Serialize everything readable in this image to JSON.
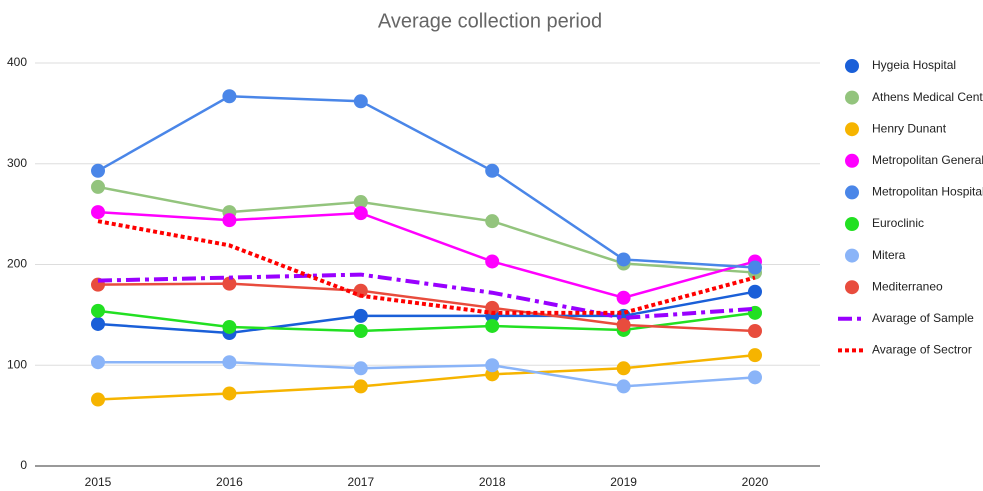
{
  "chart_data": {
    "type": "line",
    "title": "Average collection period",
    "categories": [
      "2015",
      "2016",
      "2017",
      "2018",
      "2019",
      "2020"
    ],
    "series": [
      {
        "name": "Hygeia Hospital",
        "color": "#1a5fd8",
        "values": [
          141,
          132,
          149,
          149,
          149,
          173
        ]
      },
      {
        "name": "Athens Medical Center",
        "color": "#93c47d",
        "values": [
          277,
          252,
          262,
          243,
          201,
          192
        ]
      },
      {
        "name": "Henry Dunant",
        "color": "#f6b400",
        "values": [
          66,
          72,
          79,
          91,
          97,
          110
        ]
      },
      {
        "name": "Metropolitan General",
        "color": "#ff00ff",
        "values": [
          252,
          244,
          251,
          203,
          167,
          203
        ]
      },
      {
        "name": "Metropolitan Hospital",
        "color": "#4a86e8",
        "values": [
          293,
          367,
          362,
          293,
          205,
          197
        ]
      },
      {
        "name": "Euroclinic",
        "color": "#22e022",
        "values": [
          154,
          138,
          134,
          139,
          135,
          152
        ]
      },
      {
        "name": "Mitera",
        "color": "#8ab4f8",
        "values": [
          103,
          103,
          97,
          100,
          79,
          88
        ]
      },
      {
        "name": "Mediterraneo",
        "color": "#e84c3d",
        "values": [
          180,
          181,
          174,
          157,
          140,
          134
        ]
      },
      {
        "name": "Avarage of Sample",
        "color": "#9900ff",
        "line_style": "dashdot",
        "markers": false,
        "values": [
          184,
          187,
          190,
          172,
          147,
          156
        ]
      },
      {
        "name": "Avarage of Sectror",
        "color": "#ff0000",
        "line_style": "dotted",
        "markers": false,
        "values": [
          243,
          219,
          169,
          152,
          152,
          187
        ]
      }
    ],
    "ylim": [
      0,
      400
    ],
    "yticks": [
      0,
      100,
      200,
      300,
      400
    ],
    "grid": true,
    "legend": "right"
  }
}
